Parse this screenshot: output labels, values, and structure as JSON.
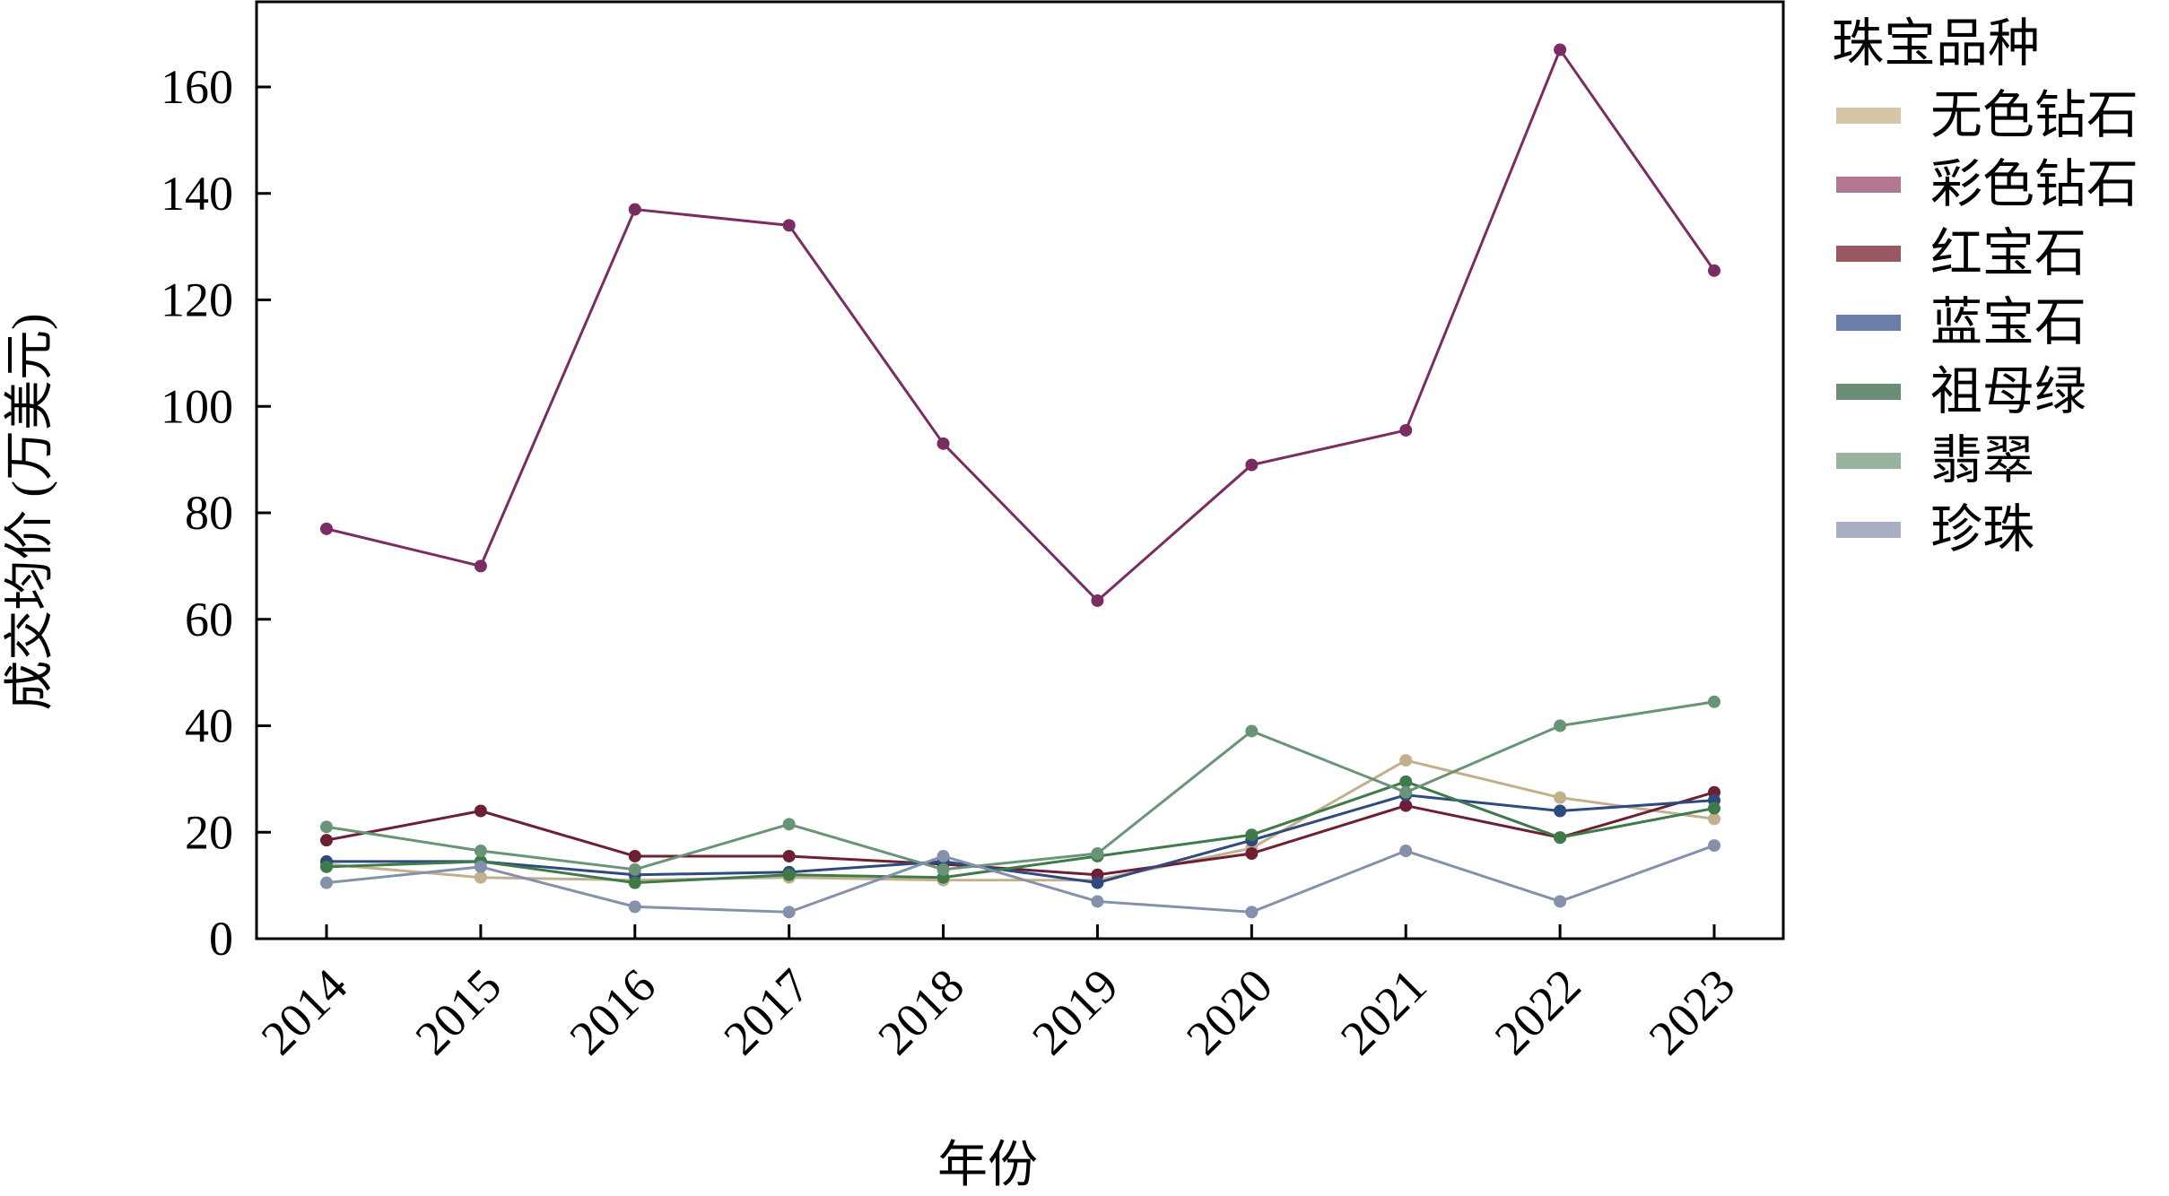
{
  "chart_data": {
    "type": "line",
    "xlabel": "年份",
    "ylabel": "成交均价 (万美元)",
    "x": [
      "2014",
      "2015",
      "2016",
      "2017",
      "2018",
      "2019",
      "2020",
      "2021",
      "2022",
      "2023"
    ],
    "yticks": [
      "0",
      "20",
      "40",
      "60",
      "80",
      "100",
      "120",
      "140",
      "160"
    ],
    "ylim": [
      0,
      176
    ],
    "grid": false,
    "legend": {
      "title": "珠宝品种",
      "placement": "right-outside"
    },
    "series": [
      {
        "name": "无色钻石",
        "line_color": "#c2b08c",
        "legend_color": "#d5c6a6",
        "values": [
          14,
          11.5,
          11,
          11.5,
          11,
          11,
          17,
          33.5,
          26.5,
          22.5
        ]
      },
      {
        "name": "彩色钻石",
        "line_color": "#7a2d62",
        "legend_color": "#b37792",
        "values": [
          77,
          70,
          137,
          134,
          93,
          63.5,
          89,
          95.5,
          167,
          125.5
        ]
      },
      {
        "name": "红宝石",
        "line_color": "#6e2032",
        "legend_color": "#9a5862",
        "values": [
          18.5,
          24,
          15.5,
          15.5,
          14,
          12,
          16,
          25,
          19,
          27.5
        ]
      },
      {
        "name": "蓝宝石",
        "line_color": "#2e4a7e",
        "legend_color": "#6a7fa8",
        "values": [
          14.5,
          14.5,
          12,
          12.5,
          14.5,
          10.5,
          18.5,
          27,
          24,
          26
        ]
      },
      {
        "name": "祖母绿",
        "line_color": "#3f7a4a",
        "legend_color": "#6a8d75",
        "values": [
          13.5,
          14.5,
          10.5,
          12,
          11.5,
          15.5,
          19.5,
          29.5,
          19,
          24.5
        ]
      },
      {
        "name": "翡翠",
        "line_color": "#6a9478",
        "legend_color": "#98b39e",
        "values": [
          21,
          16.5,
          13,
          21.5,
          13,
          16,
          39,
          27.5,
          40,
          44.5
        ]
      },
      {
        "name": "珍珠",
        "line_color": "#8591aa",
        "legend_color": "#a8afc4",
        "values": [
          10.5,
          13.5,
          6,
          5,
          15.5,
          7,
          5,
          16.5,
          7,
          17.5
        ]
      }
    ]
  }
}
